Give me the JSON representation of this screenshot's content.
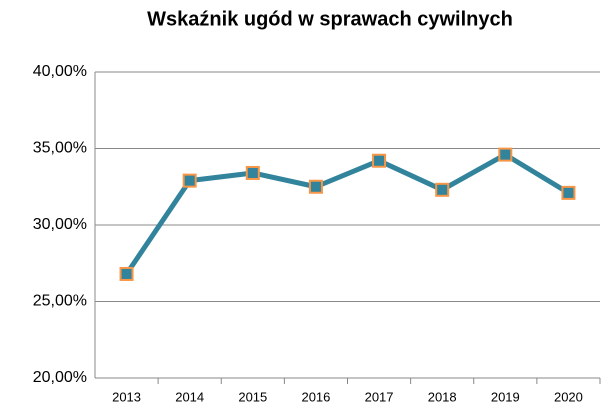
{
  "chart_data": {
    "type": "line",
    "title": "Wskaźnik ugód w sprawach cywilnych",
    "categories": [
      "2013",
      "2014",
      "2015",
      "2016",
      "2017",
      "2018",
      "2019",
      "2020"
    ],
    "series": [
      {
        "name": "Wskaźnik ugód",
        "color": "#31849b",
        "marker_color": "#f79646",
        "values": [
          26.8,
          32.9,
          33.4,
          32.5,
          34.2,
          32.3,
          34.6,
          32.1
        ]
      }
    ],
    "ylim": [
      20,
      40
    ],
    "yticks": [
      {
        "value": 20,
        "label": "20,00%"
      },
      {
        "value": 25,
        "label": "25,00%"
      },
      {
        "value": 30,
        "label": "30,00%"
      },
      {
        "value": 35,
        "label": "35,00%"
      },
      {
        "value": 40,
        "label": "40,00%"
      }
    ],
    "grid": true
  }
}
